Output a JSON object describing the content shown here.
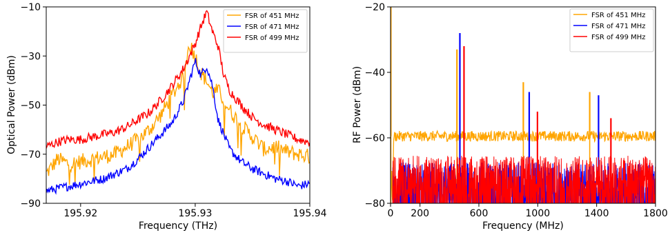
{
  "chart_data": [
    {
      "type": "line",
      "xlabel": "Frequency (THz)",
      "ylabel": "Optical Power (dBm)",
      "xlim": [
        195.917,
        195.94
      ],
      "ylim": [
        -90,
        -10
      ],
      "xticks": [
        195.92,
        195.93,
        195.94
      ],
      "xtick_labels": [
        "195.92",
        "195.93",
        "195.94"
      ],
      "yticks": [
        -90,
        -70,
        -50,
        -30,
        -10
      ],
      "ytick_labels": [
        "−90",
        "−70",
        "−50",
        "−30",
        "−10"
      ],
      "legend_position": "top-right",
      "series": [
        {
          "name": "FSR of 451 MHz",
          "color": "#ffa500",
          "x": [
            195.917,
            195.918,
            195.919,
            195.92,
            195.921,
            195.922,
            195.923,
            195.924,
            195.925,
            195.926,
            195.927,
            195.928,
            195.929,
            195.9295,
            195.93,
            195.9305,
            195.931,
            195.9315,
            195.932,
            195.9325,
            195.933,
            195.934,
            195.935,
            195.936,
            195.937,
            195.938,
            195.939,
            195.94
          ],
          "y": [
            -78,
            -72,
            -74,
            -73,
            -72,
            -71,
            -70,
            -67,
            -64,
            -60,
            -54,
            -46,
            -38,
            -25,
            -30,
            -37,
            -40,
            -45,
            -44,
            -48,
            -52,
            -58,
            -63,
            -68,
            -67,
            -69,
            -70,
            -71
          ]
        },
        {
          "name": "FSR of 471 MHz",
          "color": "#0000ff",
          "x": [
            195.917,
            195.918,
            195.919,
            195.92,
            195.921,
            195.922,
            195.923,
            195.924,
            195.925,
            195.926,
            195.927,
            195.928,
            195.929,
            195.9295,
            195.93,
            195.9305,
            195.931,
            195.9315,
            195.932,
            195.9325,
            195.933,
            195.934,
            195.935,
            195.936,
            195.937,
            195.938,
            195.939,
            195.94
          ],
          "y": [
            -85,
            -84,
            -83,
            -82,
            -81,
            -80,
            -78,
            -76,
            -72,
            -67,
            -62,
            -57,
            -48,
            -40,
            -32,
            -38,
            -34,
            -42,
            -56,
            -62,
            -68,
            -73,
            -76,
            -78,
            -80,
            -81,
            -83,
            -82
          ]
        },
        {
          "name": "FSR of 499 MHz",
          "color": "#ff0000",
          "x": [
            195.917,
            195.918,
            195.919,
            195.92,
            195.921,
            195.922,
            195.923,
            195.924,
            195.925,
            195.926,
            195.927,
            195.928,
            195.929,
            195.9295,
            195.93,
            195.9305,
            195.931,
            195.9315,
            195.932,
            195.9325,
            195.933,
            195.934,
            195.935,
            195.936,
            195.937,
            195.938,
            195.939,
            195.94
          ],
          "y": [
            -67,
            -65,
            -64,
            -64,
            -63,
            -62,
            -61,
            -59,
            -56,
            -53,
            -48,
            -42,
            -35,
            -30,
            -25,
            -18,
            -12,
            -20,
            -26,
            -38,
            -44,
            -50,
            -55,
            -58,
            -60,
            -62,
            -64,
            -65
          ]
        }
      ]
    },
    {
      "type": "line",
      "xlabel": "Frequency (MHz)",
      "ylabel": "RF Power (dBm)",
      "xlim": [
        0,
        1800
      ],
      "ylim": [
        -80,
        -20
      ],
      "xticks": [
        0,
        200,
        600,
        1000,
        1400,
        1800
      ],
      "xtick_labels": [
        "0",
        "200",
        "600",
        "1000",
        "1400",
        "1800"
      ],
      "yticks": [
        -80,
        -60,
        -40,
        -20
      ],
      "ytick_labels": [
        "−80",
        "−60",
        "−40",
        "−20"
      ],
      "legend_position": "top-right",
      "series": [
        {
          "name": "FSR of 451 MHz",
          "color": "#ffa500",
          "baseline": -59.5,
          "peaks": [
            {
              "x": 2,
              "y": -20
            },
            {
              "x": 451,
              "y": -33
            },
            {
              "x": 902,
              "y": -43
            },
            {
              "x": 1353,
              "y": -46
            }
          ]
        },
        {
          "name": "FSR of 471 MHz",
          "color": "#0000ff",
          "baseline": -74,
          "peaks": [
            {
              "x": 471,
              "y": -28
            },
            {
              "x": 942,
              "y": -46
            },
            {
              "x": 1413,
              "y": -47
            }
          ]
        },
        {
          "name": "FSR of 499 MHz",
          "color": "#ff0000",
          "baseline": -72,
          "peaks": [
            {
              "x": 499,
              "y": -32
            },
            {
              "x": 998,
              "y": -52
            },
            {
              "x": 1497,
              "y": -54
            }
          ]
        }
      ]
    }
  ]
}
